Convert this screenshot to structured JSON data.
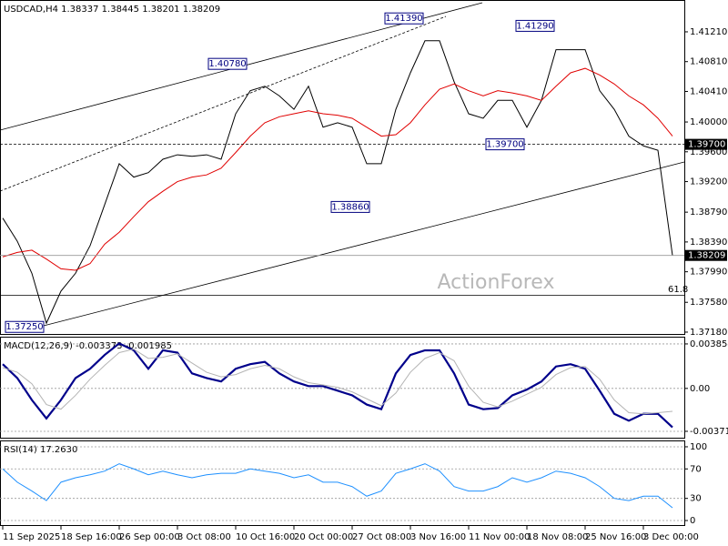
{
  "chart_data": [
    {
      "type": "line",
      "title": "USDCAD,H4 1.38337 1.38445 1.38201 1.38209",
      "categories": [
        "11 Sep 2025",
        null,
        null,
        null,
        "18 Sep 16:00",
        null,
        null,
        null,
        "26 Sep 00:00",
        null,
        null,
        null,
        "3 Oct 08:00",
        null,
        null,
        null,
        "10 Oct 16:00",
        null,
        null,
        null,
        "20 Oct 00:00",
        null,
        null,
        null,
        "27 Oct 08:00",
        null,
        null,
        null,
        "3 Nov 16:00",
        null,
        null,
        null,
        "11 Nov 00:00",
        null,
        null,
        null,
        "18 Nov 08:00",
        null,
        null,
        null,
        "25 Nov 16:00",
        null,
        null,
        null,
        "3 Dec 00:00",
        null,
        null
      ],
      "series": [
        {
          "color": "#000000",
          "values": [
            1.3871,
            1.384,
            1.3797,
            1.373,
            1.3773,
            1.3797,
            1.3834,
            1.3889,
            1.3944,
            1.3926,
            1.3932,
            1.395,
            1.3956,
            1.3954,
            1.3956,
            1.395,
            1.4011,
            1.4042,
            1.4048,
            1.4035,
            1.4017,
            1.4048,
            1.3993,
            1.3999,
            1.3993,
            1.3944,
            1.3944,
            1.4017,
            1.4066,
            1.4109,
            1.4109,
            1.4054,
            1.4011,
            1.4005,
            1.4029,
            1.4029,
            1.3993,
            1.4029,
            1.4097,
            1.4097,
            1.4097,
            1.4042,
            1.4017,
            1.3981,
            1.3968,
            1.3962,
            1.38209
          ]
        },
        {
          "color": "#e00000",
          "values": [
            1.3819,
            1.3825,
            1.3828,
            1.3816,
            1.3803,
            1.3801,
            1.381,
            1.3836,
            1.3852,
            1.3873,
            1.3893,
            1.3907,
            1.392,
            1.3926,
            1.3929,
            1.3938,
            1.3959,
            1.3981,
            1.3999,
            1.4007,
            1.4011,
            1.4015,
            1.4011,
            1.4009,
            1.4005,
            1.3993,
            1.3981,
            1.3983,
            1.3999,
            1.4023,
            1.4044,
            1.4051,
            1.4042,
            1.4035,
            1.4042,
            1.4039,
            1.4035,
            1.4029,
            1.4048,
            1.4066,
            1.4072,
            1.4063,
            1.4051,
            1.4035,
            1.4023,
            1.4005,
            1.3981
          ]
        }
      ],
      "ylim": [
        1.37143,
        1.41637
      ],
      "yticks": [
        {
          "value": 1.4121,
          "label": "1.41210"
        },
        {
          "value": 1.4081,
          "label": "1.40810"
        },
        {
          "value": 1.4041,
          "label": "1.40410"
        },
        {
          "value": 1.4,
          "label": "1.40000"
        },
        {
          "value": 1.396,
          "label": "1.39600"
        },
        {
          "value": 1.392,
          "label": "1.39200"
        },
        {
          "value": 1.3879,
          "label": "1.38790"
        },
        {
          "value": 1.3839,
          "label": "1.38390"
        },
        {
          "value": 1.3799,
          "label": "1.37990"
        },
        {
          "value": 1.3758,
          "label": "1.37580"
        },
        {
          "value": 1.3718,
          "label": "1.37180"
        }
      ],
      "grid": false,
      "annotations": [
        {
          "value": 1.4139,
          "label": "1.41390"
        },
        {
          "value": 1.4078,
          "label": "1.40780"
        },
        {
          "value": 1.4129,
          "label": "1.41290"
        },
        {
          "value": 1.397,
          "label": "1.39700"
        },
        {
          "value": 1.3886,
          "label": "1.38860"
        },
        {
          "value": 1.3725,
          "label": "1.37250"
        }
      ],
      "right_labels": [
        {
          "value": 1.397,
          "label": "1.39700"
        },
        {
          "value": 1.38209,
          "label": "1.38209"
        }
      ],
      "fib_label": 61.8,
      "watermark": "ActionForex"
    },
    {
      "type": "line",
      "title": "MACD(12,26,9) -0.003373 -0.001985",
      "series": [
        {
          "color": "#00008b",
          "values": [
            0.0021,
            0.0009,
            -0.001,
            -0.0026,
            -0.001,
            0.0009,
            0.0017,
            0.0029,
            0.0039,
            0.0033,
            0.0017,
            0.0033,
            0.0031,
            0.0013,
            0.0009,
            0.0006,
            0.0017,
            0.0021,
            0.0023,
            0.0013,
            0.0006,
            0.0002,
            0.0002,
            -0.0002,
            -0.0006,
            -0.0014,
            -0.0018,
            0.0013,
            0.0029,
            0.0033,
            0.0033,
            0.0013,
            -0.0014,
            -0.0018,
            -0.0017,
            -0.0006,
            -0.0001,
            0.0006,
            0.0019,
            0.0021,
            0.0017,
            -0.0002,
            -0.0022,
            -0.0028,
            -0.0022,
            -0.0022,
            -0.003373
          ]
        },
        {
          "color": "#b4b4b4",
          "values": [
            0.0018,
            0.0014,
            0.0004,
            -0.0014,
            -0.0018,
            -0.0006,
            0.0008,
            0.002,
            0.0031,
            0.0034,
            0.0026,
            0.0027,
            0.003,
            0.0022,
            0.0014,
            0.001,
            0.0012,
            0.0017,
            0.002,
            0.0017,
            0.001,
            0.0005,
            0.0003,
            0.0001,
            -0.0003,
            -0.0009,
            -0.0015,
            -0.0004,
            0.0014,
            0.0026,
            0.0031,
            0.0024,
            0.0002,
            -0.0012,
            -0.0016,
            -0.0011,
            -0.0005,
            0.0001,
            0.0012,
            0.0018,
            0.0019,
            0.0008,
            -0.001,
            -0.0021,
            -0.0022,
            -0.0021,
            -0.001985
          ]
        }
      ],
      "ylim": [
        -0.00435,
        0.00448
      ],
      "yticks": [
        0.003854,
        {
          "value": 0,
          "label": "0.00"
        },
        -0.003717
      ],
      "grid": true
    },
    {
      "type": "line",
      "title": "RSI(14) 17.2630",
      "series": [
        {
          "color": "#1e90ff",
          "values": [
            70,
            52,
            40,
            27,
            52,
            58,
            62,
            67,
            77,
            70,
            62,
            67,
            62,
            58,
            62,
            64,
            64,
            70,
            67,
            64,
            58,
            62,
            52,
            52,
            46,
            33,
            40,
            64,
            70,
            77,
            67,
            46,
            40,
            40,
            46,
            58,
            52,
            58,
            67,
            64,
            58,
            46,
            30,
            27,
            33,
            33,
            17.263
          ]
        }
      ],
      "ylim": [
        -7.4,
        108.6
      ],
      "yticks": [
        100,
        70,
        30,
        0
      ],
      "grid": true
    }
  ]
}
